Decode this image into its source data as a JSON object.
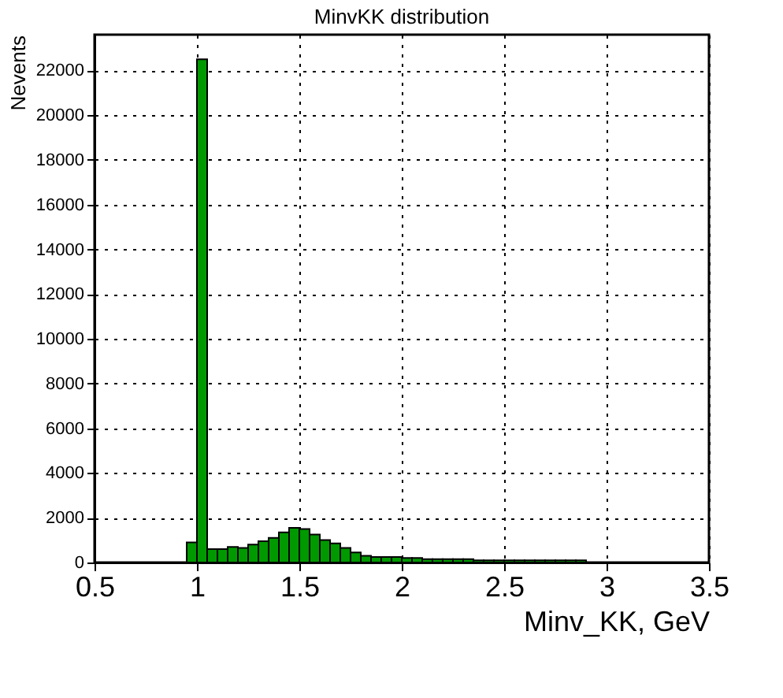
{
  "chart_data": {
    "type": "histogram",
    "title": "MinvKK  distribution",
    "xlabel": "Minv_KK, GeV",
    "ylabel": "Nevents",
    "bins": [
      0.95,
      1.0,
      1.05,
      1.1,
      1.15,
      1.2,
      1.25,
      1.3,
      1.35,
      1.4,
      1.45,
      1.5,
      1.55,
      1.6,
      1.65,
      1.7,
      1.75,
      1.8,
      1.85,
      1.9,
      1.95,
      2.0,
      2.05,
      2.1,
      2.15,
      2.2,
      2.25,
      2.3,
      2.35,
      2.4,
      2.45,
      2.5,
      2.55,
      2.6,
      2.65,
      2.7,
      2.75,
      2.8,
      2.85,
      2.9
    ],
    "values": [
      900,
      22500,
      600,
      600,
      700,
      650,
      800,
      950,
      1100,
      1350,
      1550,
      1500,
      1250,
      1000,
      850,
      650,
      450,
      300,
      250,
      250,
      250,
      200,
      200,
      150,
      150,
      150,
      150,
      150,
      100,
      100,
      100,
      100,
      100,
      100,
      100,
      100,
      100,
      100,
      100
    ],
    "color": "#009900",
    "xlim": [
      0.5,
      3.5
    ],
    "xticks": [
      0.5,
      1,
      1.5,
      2,
      2.5,
      3,
      3.5
    ],
    "ylim": [
      0,
      23600
    ],
    "yticks": [
      0,
      2000,
      4000,
      6000,
      8000,
      10000,
      12000,
      14000,
      16000,
      18000,
      20000,
      22000
    ],
    "grid": true
  }
}
